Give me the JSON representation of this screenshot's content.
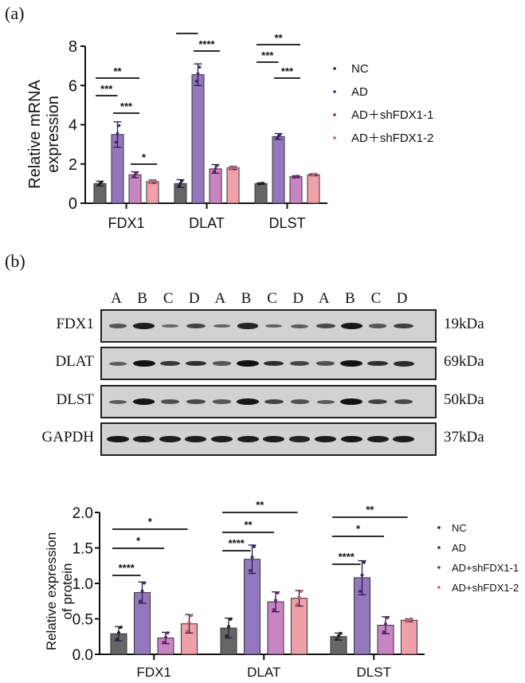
{
  "panels": {
    "a": {
      "label": "(a)"
    },
    "b": {
      "label": "(b)"
    }
  },
  "colors": {
    "NC": "#666666",
    "AD": "#9478bd",
    "AD_shFDX1_1": "#c985c3",
    "AD_shFDX1_2": "#f0a0a8"
  },
  "chart_data": [
    {
      "type": "bar",
      "title": "",
      "xlabel": "",
      "ylabel": "Relative mRNA expression",
      "ylim": [
        0,
        8
      ],
      "yticks": [
        0,
        2,
        4,
        6,
        8
      ],
      "categories": [
        "FDX1",
        "DLAT",
        "DLST"
      ],
      "series": [
        {
          "name": "NC",
          "values": [
            1.0,
            1.0,
            1.0
          ],
          "errors": [
            0.12,
            0.2,
            0.04
          ]
        },
        {
          "name": "AD",
          "values": [
            3.5,
            6.55,
            3.4
          ],
          "errors": [
            0.65,
            0.55,
            0.15
          ]
        },
        {
          "name": "AD+shFDX1-1",
          "values": [
            1.45,
            1.75,
            1.35
          ],
          "errors": [
            0.15,
            0.22,
            0.05
          ]
        },
        {
          "name": "AD+shFDX1-2",
          "values": [
            1.1,
            1.8,
            1.45
          ],
          "errors": [
            0.08,
            0.08,
            0.05
          ]
        }
      ],
      "significance": [
        {
          "category": "FDX1",
          "from": "NC",
          "to": "AD+shFDX1-1",
          "label": "**"
        },
        {
          "category": "FDX1",
          "from": "NC",
          "to": "AD",
          "label": "***"
        },
        {
          "category": "FDX1",
          "from": "AD",
          "to": "AD+shFDX1-1",
          "label": "***"
        },
        {
          "category": "FDX1",
          "from": "AD+shFDX1-1",
          "to": "AD+shFDX1-2",
          "label": "*"
        },
        {
          "category": "DLAT",
          "from": "NC",
          "to": "AD+shFDX1-1",
          "label": "**"
        },
        {
          "category": "DLAT",
          "from": "NC",
          "to": "AD",
          "label": "****"
        },
        {
          "category": "DLAT",
          "from": "AD",
          "to": "AD+shFDX1-1",
          "label": "****"
        },
        {
          "category": "DLST",
          "from": "NC",
          "to": "AD+shFDX1-1",
          "label": "**"
        },
        {
          "category": "DLST",
          "from": "NC",
          "to": "AD",
          "label": "***"
        },
        {
          "category": "DLST",
          "from": "AD",
          "to": "AD+shFDX1-1",
          "label": "***"
        }
      ],
      "legend": [
        "NC",
        "AD",
        "AD＋shFDX1-1",
        "AD＋shFDX1-2"
      ],
      "legend_position": "right",
      "grid": false
    },
    {
      "type": "bar",
      "title": "",
      "xlabel": "",
      "ylabel": "Relative  expression of protein",
      "ylim": [
        0,
        2.0
      ],
      "yticks": [
        0.0,
        0.5,
        1.0,
        1.5,
        2.0
      ],
      "categories": [
        "FDX1",
        "DLAT",
        "DLST"
      ],
      "series": [
        {
          "name": "NC",
          "values": [
            0.29,
            0.37,
            0.25
          ],
          "errors": [
            0.1,
            0.14,
            0.05
          ]
        },
        {
          "name": "AD",
          "values": [
            0.87,
            1.34,
            1.08
          ],
          "errors": [
            0.15,
            0.2,
            0.24
          ]
        },
        {
          "name": "AD+shFDX1-1",
          "values": [
            0.23,
            0.74,
            0.41
          ],
          "errors": [
            0.08,
            0.14,
            0.12
          ]
        },
        {
          "name": "AD+shFDX1-2",
          "values": [
            0.43,
            0.79,
            0.48
          ],
          "errors": [
            0.13,
            0.11,
            0.02
          ]
        }
      ],
      "significance": [
        {
          "category": "FDX1",
          "from": "NC",
          "to": "AD+shFDX1-2",
          "label": "*"
        },
        {
          "category": "FDX1",
          "from": "NC",
          "to": "AD+shFDX1-1",
          "label": "*"
        },
        {
          "category": "FDX1",
          "from": "NC",
          "to": "AD",
          "label": "****"
        },
        {
          "category": "DLAT",
          "from": "NC",
          "to": "AD+shFDX1-2",
          "label": "**"
        },
        {
          "category": "DLAT",
          "from": "NC",
          "to": "AD+shFDX1-1",
          "label": "**"
        },
        {
          "category": "DLAT",
          "from": "NC",
          "to": "AD",
          "label": "****"
        },
        {
          "category": "DLST",
          "from": "NC",
          "to": "AD+shFDX1-2",
          "label": "**"
        },
        {
          "category": "DLST",
          "from": "NC",
          "to": "AD+shFDX1-1",
          "label": "*"
        },
        {
          "category": "DLST",
          "from": "NC",
          "to": "AD",
          "label": "****"
        }
      ],
      "legend": [
        "NC",
        "AD",
        "AD+shFDX1-1",
        "AD+shFDX1-2"
      ],
      "legend_position": "right",
      "grid": false
    }
  ],
  "western_blot": {
    "lanes": [
      "A",
      "B",
      "C",
      "D",
      "A",
      "B",
      "C",
      "D",
      "A",
      "B",
      "C",
      "D"
    ],
    "rows": [
      {
        "protein": "FDX1",
        "size": "19kDa",
        "intensity": [
          0.45,
          0.9,
          0.3,
          0.6,
          0.35,
          0.85,
          0.35,
          0.4,
          0.55,
          0.95,
          0.45,
          0.65
        ]
      },
      {
        "protein": "DLAT",
        "size": "69kDa",
        "intensity": [
          0.4,
          1.0,
          0.7,
          0.75,
          0.45,
          1.0,
          0.75,
          0.6,
          0.5,
          1.0,
          0.75,
          0.8
        ]
      },
      {
        "protein": "DLST",
        "size": "50kDa",
        "intensity": [
          0.4,
          0.95,
          0.5,
          0.55,
          0.45,
          0.95,
          0.6,
          0.5,
          0.4,
          1.0,
          0.6,
          0.55
        ]
      },
      {
        "protein": "GAPDH",
        "size": "37kDa",
        "intensity": [
          0.95,
          0.9,
          0.9,
          0.9,
          0.9,
          0.9,
          0.9,
          0.85,
          0.9,
          0.95,
          0.9,
          0.9
        ]
      }
    ]
  }
}
